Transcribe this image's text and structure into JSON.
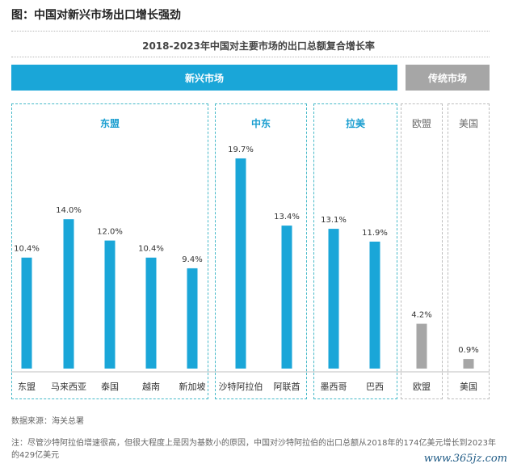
{
  "figure_title": "图：中国对新兴市场出口增长强劲",
  "chart_data": {
    "type": "bar",
    "title": "2018-2023年中国对主要市场的出口总额复合增长率",
    "groups": [
      {
        "band": "新兴市场",
        "region": "东盟",
        "categories": [
          "东盟",
          "马来西亚",
          "泰国",
          "越南",
          "新加坡"
        ],
        "values": [
          10.4,
          14.0,
          12.0,
          10.4,
          9.4
        ],
        "labels": [
          "10.4%",
          "14.0%",
          "12.0%",
          "10.4%",
          "9.4%"
        ],
        "color": "#1aa6d8"
      },
      {
        "band": "新兴市场",
        "region": "中东",
        "categories": [
          "沙特阿拉伯",
          "阿联酋"
        ],
        "values": [
          19.7,
          13.4
        ],
        "labels": [
          "19.7%",
          "13.4%"
        ],
        "color": "#1aa6d8"
      },
      {
        "band": "新兴市场",
        "region": "拉美",
        "categories": [
          "墨西哥",
          "巴西"
        ],
        "values": [
          13.1,
          11.9
        ],
        "labels": [
          "13.1%",
          "11.9%"
        ],
        "color": "#1aa6d8"
      },
      {
        "band": "传统市场",
        "region": "欧盟",
        "categories": [
          "欧盟"
        ],
        "values": [
          4.2
        ],
        "labels": [
          "4.2%"
        ],
        "color": "#a6a6a6"
      },
      {
        "band": "传统市场",
        "region": "美国",
        "categories": [
          "美国"
        ],
        "values": [
          0.9
        ],
        "labels": [
          "0.9%"
        ],
        "color": "#a6a6a6"
      }
    ],
    "band_labels": {
      "emerging": "新兴市场",
      "traditional": "传统市场"
    },
    "ylim": [
      0,
      20
    ],
    "colors": {
      "emerging": "#1aa6d8",
      "traditional": "#a6a6a6"
    }
  },
  "source": "数据来源：海关总署",
  "note": "注：尽管沙特阿拉伯增速很高，但很大程度上是因为基数小的原因，中国对沙特阿拉伯的出口总额从2018年的174亿美元增长到2023年的429亿美元",
  "watermark": "www.365jz.com"
}
